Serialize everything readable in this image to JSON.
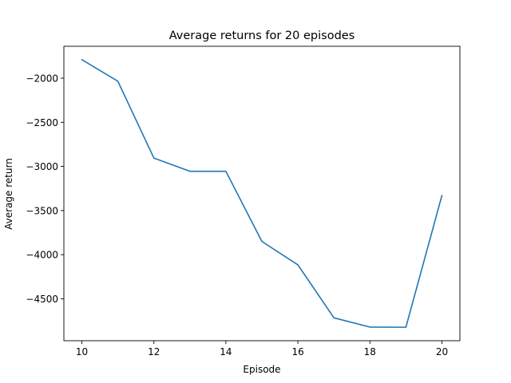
{
  "chart_data": {
    "type": "line",
    "title": "Average returns for 20 episodes",
    "xlabel": "Episode",
    "ylabel": "Average return",
    "x": [
      10,
      11,
      12,
      13,
      14,
      15,
      16,
      17,
      18,
      19,
      20
    ],
    "series": [
      {
        "values": [
          -1790,
          -2035,
          -2905,
          -3055,
          -3055,
          -3850,
          -4115,
          -4715,
          -4820,
          -4822,
          -3330
        ],
        "color": "#1f77b4"
      }
    ],
    "xticks": [
      10,
      12,
      14,
      16,
      18,
      20
    ],
    "xtick_labels": [
      "10",
      "12",
      "14",
      "16",
      "18",
      "20"
    ],
    "yticks": [
      -2000,
      -2500,
      -3000,
      -3500,
      -4000,
      -4500
    ],
    "ytick_labels": [
      "−2000",
      "−2500",
      "−3000",
      "−3500",
      "−4000",
      "−4500"
    ],
    "xlim": [
      9.5,
      20.5
    ],
    "ylim": [
      -4974.6,
      -1638.4
    ],
    "grid": false,
    "legend": "none"
  }
}
